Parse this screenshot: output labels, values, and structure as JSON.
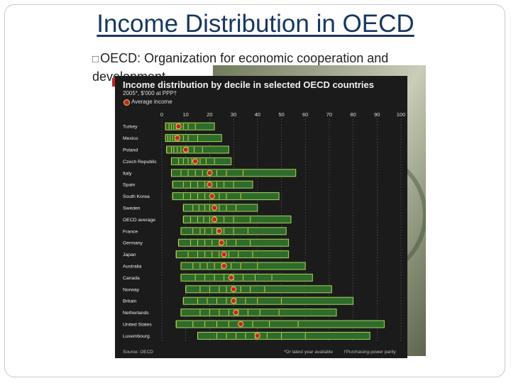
{
  "slide": {
    "title": "Income Distribution in OECD",
    "bullet_glyph": "□",
    "bullet_text": "OECD: Organization for economic cooperation and development"
  },
  "chart_data": {
    "type": "bar",
    "title": "Income distribution by decile in selected OECD countries",
    "subtitle": "2005*, $'000 at PPP†",
    "legend": [
      "Average income"
    ],
    "x_ticks": [
      0,
      10,
      20,
      30,
      40,
      50,
      60,
      70,
      80,
      90,
      100
    ],
    "xlim": [
      0,
      100
    ],
    "source": "Source: OECD",
    "footnotes": [
      "*Or latest year available",
      "†Purchasing-power parity"
    ],
    "colors": {
      "bar": "#2f6b2a",
      "bar_edge": "#a5d65a",
      "divider": "#e3d94a",
      "marker": "#c0272d",
      "marker_edge": "#f2c94c",
      "panel": "#1b1b1b"
    },
    "countries": [
      {
        "name": "Turkey",
        "deciles": [
          1.5,
          3,
          4,
          5,
          6,
          7.5,
          9,
          11,
          14,
          22
        ],
        "min": 1.5,
        "max": 22,
        "average": 7
      },
      {
        "name": "Mexico",
        "deciles": [
          1.5,
          2.5,
          3.5,
          4.5,
          5.5,
          7,
          9,
          11,
          15,
          25
        ],
        "min": 1.5,
        "max": 25,
        "average": 6.5
      },
      {
        "name": "Poland",
        "deciles": [
          2,
          4,
          5,
          6.5,
          8,
          9.5,
          11,
          13.5,
          17,
          28
        ],
        "min": 2,
        "max": 28,
        "average": 10
      },
      {
        "name": "Czech Republic",
        "deciles": [
          4,
          7,
          9,
          11,
          12.5,
          14,
          16,
          18.5,
          22,
          29
        ],
        "min": 4,
        "max": 29,
        "average": 14
      },
      {
        "name": "Italy",
        "deciles": [
          4,
          8,
          11,
          14,
          17,
          20,
          23,
          27,
          34,
          56
        ],
        "min": 4,
        "max": 56,
        "average": 20
      },
      {
        "name": "Spain",
        "deciles": [
          4.5,
          9,
          12,
          15,
          18,
          20,
          23,
          26,
          30,
          38
        ],
        "min": 4.5,
        "max": 38,
        "average": 20
      },
      {
        "name": "South Korea",
        "deciles": [
          4.5,
          9,
          12,
          15,
          18,
          21,
          24,
          27,
          33,
          49
        ],
        "min": 4.5,
        "max": 49,
        "average": 21
      },
      {
        "name": "Sweden",
        "deciles": [
          9,
          13,
          15.5,
          18,
          20,
          22,
          24,
          27,
          31,
          40
        ],
        "min": 9,
        "max": 40,
        "average": 22
      },
      {
        "name": "OECD average",
        "deciles": [
          9,
          12,
          15,
          17.5,
          20,
          22.5,
          26,
          30,
          37,
          54
        ],
        "min": 9,
        "max": 54,
        "average": 22
      },
      {
        "name": "France",
        "deciles": [
          8,
          13,
          16,
          18,
          21,
          23,
          26,
          30,
          36,
          52
        ],
        "min": 8,
        "max": 52,
        "average": 24
      },
      {
        "name": "Germany",
        "deciles": [
          7,
          12,
          15,
          18,
          21,
          24,
          27,
          31,
          37,
          53
        ],
        "min": 7,
        "max": 53,
        "average": 25
      },
      {
        "name": "Japan",
        "deciles": [
          6,
          11,
          15,
          18,
          21,
          24,
          28,
          32,
          38,
          53
        ],
        "min": 6,
        "max": 53,
        "average": 26
      },
      {
        "name": "Australia",
        "deciles": [
          8,
          13,
          16,
          19,
          22,
          25,
          29,
          33,
          40,
          60
        ],
        "min": 8,
        "max": 60,
        "average": 26
      },
      {
        "name": "Canada",
        "deciles": [
          8,
          14,
          18,
          22,
          26,
          30,
          34,
          39,
          46,
          63
        ],
        "min": 8,
        "max": 63,
        "average": 29
      },
      {
        "name": "Norway",
        "deciles": [
          10,
          16,
          20,
          24,
          27,
          30,
          33,
          37,
          43,
          71
        ],
        "min": 10,
        "max": 71,
        "average": 30
      },
      {
        "name": "Britain",
        "deciles": [
          9,
          15,
          19,
          23,
          27,
          31,
          35,
          40,
          50,
          80
        ],
        "min": 9,
        "max": 80,
        "average": 30
      },
      {
        "name": "Netherlands",
        "deciles": [
          8,
          16,
          20,
          24,
          28,
          32,
          36,
          41,
          49,
          73
        ],
        "min": 8,
        "max": 73,
        "average": 31
      },
      {
        "name": "United States",
        "deciles": [
          6,
          13,
          18,
          23,
          28,
          33,
          38,
          45,
          57,
          93
        ],
        "min": 6,
        "max": 93,
        "average": 33
      },
      {
        "name": "Luxembourg",
        "deciles": [
          15,
          23,
          27,
          31,
          35,
          39,
          44,
          50,
          60,
          87
        ],
        "min": 15,
        "max": 87,
        "average": 40
      }
    ]
  }
}
